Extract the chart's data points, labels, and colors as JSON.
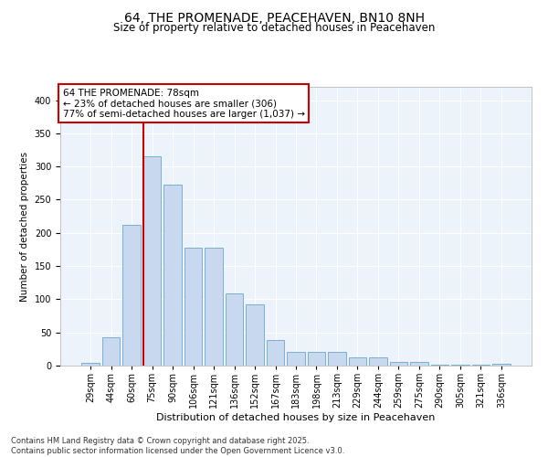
{
  "title": "64, THE PROMENADE, PEACEHAVEN, BN10 8NH",
  "subtitle": "Size of property relative to detached houses in Peacehaven",
  "xlabel": "Distribution of detached houses by size in Peacehaven",
  "ylabel": "Number of detached properties",
  "categories": [
    "29sqm",
    "44sqm",
    "60sqm",
    "75sqm",
    "90sqm",
    "106sqm",
    "121sqm",
    "136sqm",
    "152sqm",
    "167sqm",
    "183sqm",
    "198sqm",
    "213sqm",
    "229sqm",
    "244sqm",
    "259sqm",
    "275sqm",
    "290sqm",
    "305sqm",
    "321sqm",
    "336sqm"
  ],
  "values": [
    4,
    43,
    212,
    315,
    273,
    178,
    178,
    109,
    92,
    38,
    21,
    21,
    21,
    13,
    12,
    5,
    5,
    1,
    1,
    1,
    3
  ],
  "bar_color": "#c8d9ef",
  "bar_edgecolor": "#7aafd4",
  "vline_color": "#cc0000",
  "vline_index": 3,
  "annotation_line1": "64 THE PROMENADE: 78sqm",
  "annotation_line2": "← 23% of detached houses are smaller (306)",
  "annotation_line3": "77% of semi-detached houses are larger (1,037) →",
  "annotation_box_color": "#cc0000",
  "annotation_fontsize": 7.5,
  "ylim": [
    0,
    420
  ],
  "yticks": [
    0,
    50,
    100,
    150,
    200,
    250,
    300,
    350,
    400
  ],
  "background_color": "#edf3fa",
  "grid_color": "#ffffff",
  "footer_text": "Contains HM Land Registry data © Crown copyright and database right 2025.\nContains public sector information licensed under the Open Government Licence v3.0.",
  "title_fontsize": 10,
  "subtitle_fontsize": 8.5,
  "xlabel_fontsize": 8,
  "ylabel_fontsize": 7.5,
  "tick_fontsize": 7,
  "footer_fontsize": 6
}
